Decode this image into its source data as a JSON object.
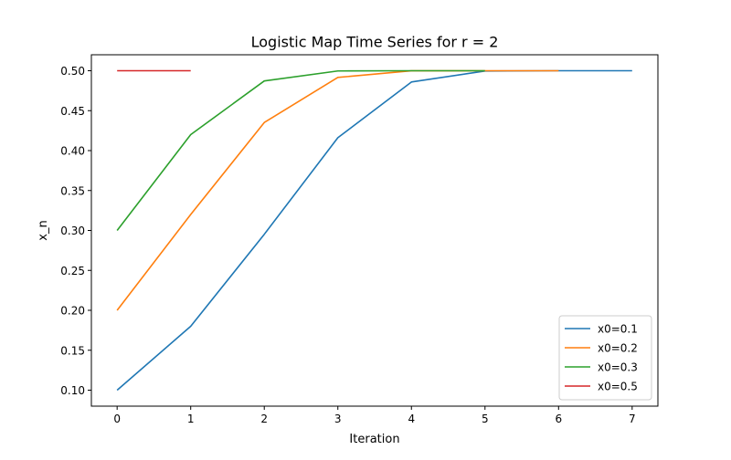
{
  "chart_data": {
    "type": "line",
    "title": "Logistic Map Time Series for r = 2",
    "xlabel": "Iteration",
    "ylabel": "x_n",
    "xlim": [
      -0.35,
      7.35
    ],
    "ylim": [
      0.08,
      0.52
    ],
    "xticks": [
      0,
      1,
      2,
      3,
      4,
      5,
      6,
      7
    ],
    "xtick_labels": [
      "0",
      "1",
      "2",
      "3",
      "4",
      "5",
      "6",
      "7"
    ],
    "yticks": [
      0.1,
      0.15,
      0.2,
      0.25,
      0.3,
      0.35,
      0.4,
      0.45,
      0.5
    ],
    "ytick_labels": [
      "0.10",
      "0.15",
      "0.20",
      "0.25",
      "0.30",
      "0.35",
      "0.40",
      "0.45",
      "0.50"
    ],
    "grid": false,
    "legend_position": "lower-right",
    "series": [
      {
        "name": "x0=0.1",
        "color": "#1f77b4",
        "x": [
          0,
          1,
          2,
          3,
          4,
          5,
          6,
          7
        ],
        "y": [
          0.1,
          0.18,
          0.2952,
          0.4161,
          0.4859,
          0.4996,
          0.5,
          0.5
        ]
      },
      {
        "name": "x0=0.2",
        "color": "#ff7f0e",
        "x": [
          0,
          1,
          2,
          3,
          4,
          5,
          6
        ],
        "y": [
          0.2,
          0.32,
          0.4352,
          0.4916,
          0.4999,
          0.5,
          0.5
        ]
      },
      {
        "name": "x0=0.3",
        "color": "#2ca02c",
        "x": [
          0,
          1,
          2,
          3,
          4,
          5
        ],
        "y": [
          0.3,
          0.42,
          0.4872,
          0.4997,
          0.5,
          0.5
        ]
      },
      {
        "name": "x0=0.5",
        "color": "#d62728",
        "x": [
          0,
          1
        ],
        "y": [
          0.5,
          0.5
        ]
      }
    ]
  }
}
